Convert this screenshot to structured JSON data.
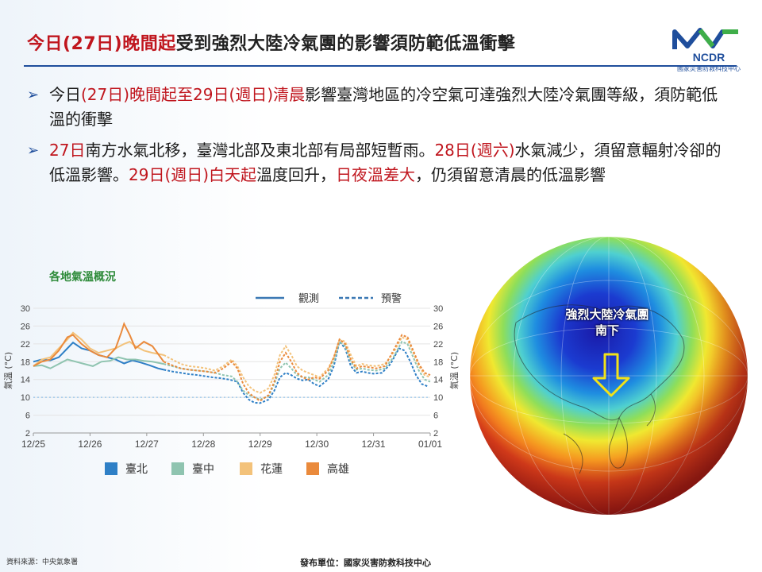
{
  "header": {
    "title_red": "今日(27日)晚間起",
    "title_rest": "受到強烈大陸冷氣團的影響須防範低溫衝擊",
    "logo_text": "NCDR",
    "logo_subtext": "國家災害防救科技中心",
    "colors": {
      "accent_red": "#c0161e",
      "accent_blue": "#1f4e9c"
    }
  },
  "bullets": [
    {
      "arrow_icon": "chevron-right-icon",
      "parts": [
        {
          "text": "今日",
          "red": false
        },
        {
          "text": "(27日)晚間起",
          "red": true
        },
        {
          "text": "至29日(週日)清晨",
          "red": true
        },
        {
          "text": "影響臺灣地區的冷空氣可達強烈大陸冷氣團等級，須防範低溫的衝擊",
          "red": false
        }
      ]
    },
    {
      "arrow_icon": "chevron-right-icon",
      "parts": [
        {
          "text": "27日",
          "red": true
        },
        {
          "text": "南方水氣北移，臺灣北部及東北部有局部短暫雨。",
          "red": false
        },
        {
          "text": "28日(週六)",
          "red": true
        },
        {
          "text": "水氣減少，須留意輻射冷卻的低溫影響。",
          "red": false
        },
        {
          "text": "29日(週日)白天起",
          "red": true
        },
        {
          "text": "溫度回升，",
          "red": false
        },
        {
          "text": "日夜溫差大",
          "red": true
        },
        {
          "text": "，仍須留意清晨的低溫影響",
          "red": false
        }
      ]
    }
  ],
  "chart_data": {
    "type": "line",
    "title": "各地氣溫概況",
    "ylabel": "氣溫 (°C)",
    "ylim": [
      2,
      30
    ],
    "yticks": [
      2,
      6,
      10,
      14,
      18,
      22,
      26,
      30
    ],
    "xlim": [
      0,
      7
    ],
    "xticks": [
      "12/25",
      "12/26",
      "12/27",
      "12/28",
      "12/29",
      "12/30",
      "12/31",
      "01/01"
    ],
    "warning_line": 10,
    "style_legend": [
      {
        "label": "觀測",
        "style": "solid"
      },
      {
        "label": "預警",
        "style": "dashed"
      }
    ],
    "series": [
      {
        "name": "臺北",
        "color": "#2e7fc6",
        "observed": [
          [
            0,
            18
          ],
          [
            0.15,
            18.5
          ],
          [
            0.3,
            18.3
          ],
          [
            0.45,
            19
          ],
          [
            0.6,
            21
          ],
          [
            0.7,
            22.3
          ],
          [
            0.85,
            21
          ],
          [
            1.0,
            20.5
          ],
          [
            1.15,
            19.5
          ],
          [
            1.3,
            19
          ],
          [
            1.45,
            18.5
          ],
          [
            1.6,
            17.6
          ],
          [
            1.75,
            18.3
          ],
          [
            1.9,
            17.8
          ],
          [
            2.05,
            17.2
          ],
          [
            2.2,
            16.5
          ],
          [
            2.3,
            16.2
          ]
        ],
        "forecast": [
          [
            2.3,
            16.2
          ],
          [
            2.45,
            15.8
          ],
          [
            2.6,
            15.5
          ],
          [
            2.75,
            15.2
          ],
          [
            2.9,
            15
          ],
          [
            3.0,
            14.8
          ],
          [
            3.15,
            14.5
          ],
          [
            3.3,
            14.3
          ],
          [
            3.45,
            14
          ],
          [
            3.6,
            13.5
          ],
          [
            3.7,
            11
          ],
          [
            3.8,
            9.5
          ],
          [
            3.9,
            8.8
          ],
          [
            4.0,
            8.7
          ],
          [
            4.15,
            9.5
          ],
          [
            4.25,
            11.5
          ],
          [
            4.35,
            14.5
          ],
          [
            4.45,
            15.5
          ],
          [
            4.55,
            15
          ],
          [
            4.65,
            14.2
          ],
          [
            4.75,
            13.8
          ],
          [
            4.85,
            14
          ],
          [
            4.95,
            13
          ],
          [
            5.05,
            12.5
          ],
          [
            5.2,
            14
          ],
          [
            5.3,
            17
          ],
          [
            5.4,
            22.5
          ],
          [
            5.5,
            21
          ],
          [
            5.6,
            17
          ],
          [
            5.7,
            15.5
          ],
          [
            5.8,
            15.8
          ],
          [
            5.9,
            15.5
          ],
          [
            6.0,
            15.3
          ],
          [
            6.15,
            15.5
          ],
          [
            6.3,
            17.5
          ],
          [
            6.45,
            21
          ],
          [
            6.55,
            20.5
          ],
          [
            6.65,
            18
          ],
          [
            6.75,
            15
          ],
          [
            6.85,
            13
          ],
          [
            6.95,
            12.5
          ]
        ]
      },
      {
        "name": "臺中",
        "color": "#8fc4b0",
        "observed": [
          [
            0,
            17
          ],
          [
            0.15,
            17.2
          ],
          [
            0.3,
            16.5
          ],
          [
            0.45,
            17.5
          ],
          [
            0.6,
            18.5
          ],
          [
            0.75,
            18
          ],
          [
            0.9,
            17.5
          ],
          [
            1.05,
            17
          ],
          [
            1.2,
            18
          ],
          [
            1.35,
            18.2
          ],
          [
            1.5,
            19
          ],
          [
            1.65,
            18.5
          ],
          [
            1.8,
            18.5
          ],
          [
            1.95,
            18.2
          ],
          [
            2.1,
            18
          ],
          [
            2.3,
            17.5
          ]
        ],
        "forecast": [
          [
            2.3,
            17.5
          ],
          [
            2.45,
            17
          ],
          [
            2.6,
            16.5
          ],
          [
            2.75,
            16.2
          ],
          [
            2.9,
            16
          ],
          [
            3.05,
            15.8
          ],
          [
            3.2,
            15.5
          ],
          [
            3.35,
            15
          ],
          [
            3.5,
            14.7
          ],
          [
            3.6,
            13.5
          ],
          [
            3.7,
            11.5
          ],
          [
            3.8,
            10.5
          ],
          [
            3.9,
            10
          ],
          [
            4.0,
            9.5
          ],
          [
            4.15,
            10.3
          ],
          [
            4.25,
            13
          ],
          [
            4.35,
            16.5
          ],
          [
            4.45,
            17.8
          ],
          [
            4.55,
            16.5
          ],
          [
            4.65,
            15
          ],
          [
            4.75,
            14.5
          ],
          [
            4.85,
            14.5
          ],
          [
            4.95,
            14
          ],
          [
            5.05,
            13.5
          ],
          [
            5.2,
            15
          ],
          [
            5.3,
            18
          ],
          [
            5.4,
            22.5
          ],
          [
            5.5,
            21.5
          ],
          [
            5.6,
            18
          ],
          [
            5.7,
            16.2
          ],
          [
            5.8,
            16.5
          ],
          [
            5.9,
            16.2
          ],
          [
            6.05,
            16
          ],
          [
            6.2,
            16.5
          ],
          [
            6.35,
            19
          ],
          [
            6.5,
            22.5
          ],
          [
            6.6,
            22
          ],
          [
            6.7,
            19
          ],
          [
            6.8,
            16
          ],
          [
            6.9,
            14
          ],
          [
            7.0,
            13.5
          ]
        ]
      },
      {
        "name": "花蓮",
        "color": "#f3c27a",
        "observed": [
          [
            0,
            17
          ],
          [
            0.15,
            18.5
          ],
          [
            0.3,
            19
          ],
          [
            0.45,
            21
          ],
          [
            0.6,
            23
          ],
          [
            0.7,
            24.5
          ],
          [
            0.85,
            23
          ],
          [
            1.0,
            21
          ],
          [
            1.15,
            20
          ],
          [
            1.3,
            20.5
          ],
          [
            1.45,
            21
          ],
          [
            1.6,
            22
          ],
          [
            1.7,
            22.5
          ],
          [
            1.8,
            21.5
          ],
          [
            1.95,
            20.5
          ],
          [
            2.1,
            20
          ],
          [
            2.3,
            19.5
          ]
        ],
        "forecast": [
          [
            2.3,
            19.5
          ],
          [
            2.45,
            18.5
          ],
          [
            2.6,
            17.5
          ],
          [
            2.75,
            17
          ],
          [
            2.9,
            16.8
          ],
          [
            3.05,
            16.5
          ],
          [
            3.2,
            16
          ],
          [
            3.35,
            17
          ],
          [
            3.5,
            18.5
          ],
          [
            3.6,
            17
          ],
          [
            3.7,
            14.5
          ],
          [
            3.8,
            12.5
          ],
          [
            3.9,
            11.5
          ],
          [
            4.0,
            11
          ],
          [
            4.15,
            12
          ],
          [
            4.25,
            15
          ],
          [
            4.35,
            19.5
          ],
          [
            4.45,
            21.5
          ],
          [
            4.55,
            19.5
          ],
          [
            4.65,
            17
          ],
          [
            4.75,
            16
          ],
          [
            4.85,
            15.5
          ],
          [
            4.95,
            15
          ],
          [
            5.05,
            14.5
          ],
          [
            5.2,
            16.5
          ],
          [
            5.3,
            19
          ],
          [
            5.4,
            23
          ],
          [
            5.5,
            22.5
          ],
          [
            5.6,
            19.5
          ],
          [
            5.7,
            17
          ],
          [
            5.8,
            17.5
          ],
          [
            5.9,
            17.2
          ],
          [
            6.05,
            17
          ],
          [
            6.2,
            17.5
          ],
          [
            6.35,
            20
          ],
          [
            6.5,
            23.5
          ],
          [
            6.6,
            23
          ],
          [
            6.7,
            20
          ],
          [
            6.8,
            17
          ],
          [
            6.9,
            15
          ],
          [
            7.0,
            14.5
          ]
        ]
      },
      {
        "name": "高雄",
        "color": "#ea8a3c",
        "observed": [
          [
            0,
            17
          ],
          [
            0.15,
            18
          ],
          [
            0.3,
            18.5
          ],
          [
            0.45,
            20.5
          ],
          [
            0.6,
            23.5
          ],
          [
            0.7,
            24
          ],
          [
            0.85,
            22
          ],
          [
            1.0,
            20.5
          ],
          [
            1.15,
            19.5
          ],
          [
            1.3,
            19
          ],
          [
            1.45,
            21
          ],
          [
            1.55,
            24.5
          ],
          [
            1.6,
            26.5
          ],
          [
            1.7,
            24
          ],
          [
            1.8,
            21
          ],
          [
            1.95,
            22.5
          ],
          [
            2.1,
            21.5
          ],
          [
            2.3,
            18
          ]
        ],
        "forecast": [
          [
            2.3,
            18
          ],
          [
            2.45,
            17.2
          ],
          [
            2.6,
            16.5
          ],
          [
            2.75,
            16.2
          ],
          [
            2.9,
            16
          ],
          [
            3.05,
            15.8
          ],
          [
            3.2,
            15.5
          ],
          [
            3.35,
            16.5
          ],
          [
            3.5,
            18
          ],
          [
            3.6,
            16.5
          ],
          [
            3.7,
            13
          ],
          [
            3.8,
            11
          ],
          [
            3.9,
            10
          ],
          [
            4.0,
            9.2
          ],
          [
            4.15,
            10.5
          ],
          [
            4.25,
            13.5
          ],
          [
            4.35,
            18
          ],
          [
            4.45,
            20
          ],
          [
            4.55,
            18
          ],
          [
            4.65,
            15.5
          ],
          [
            4.75,
            14.5
          ],
          [
            4.85,
            14
          ],
          [
            4.95,
            14.5
          ],
          [
            5.05,
            14.2
          ],
          [
            5.2,
            16
          ],
          [
            5.3,
            19
          ],
          [
            5.4,
            23
          ],
          [
            5.5,
            22
          ],
          [
            5.6,
            18.5
          ],
          [
            5.7,
            16.5
          ],
          [
            5.8,
            17
          ],
          [
            5.9,
            16.8
          ],
          [
            6.05,
            16.5
          ],
          [
            6.2,
            17
          ],
          [
            6.35,
            20.5
          ],
          [
            6.5,
            24
          ],
          [
            6.6,
            23.5
          ],
          [
            6.7,
            20.5
          ],
          [
            6.8,
            17.5
          ],
          [
            6.9,
            15.5
          ],
          [
            7.0,
            15
          ]
        ]
      }
    ]
  },
  "globe": {
    "label_line1": "強烈大陸冷氣團",
    "label_line2": "南下",
    "arrow_icon": "down-arrow-icon"
  },
  "footer": {
    "source": "資料來源：中央氣象署",
    "publisher": "發布單位：國家災害防救科技中心"
  }
}
